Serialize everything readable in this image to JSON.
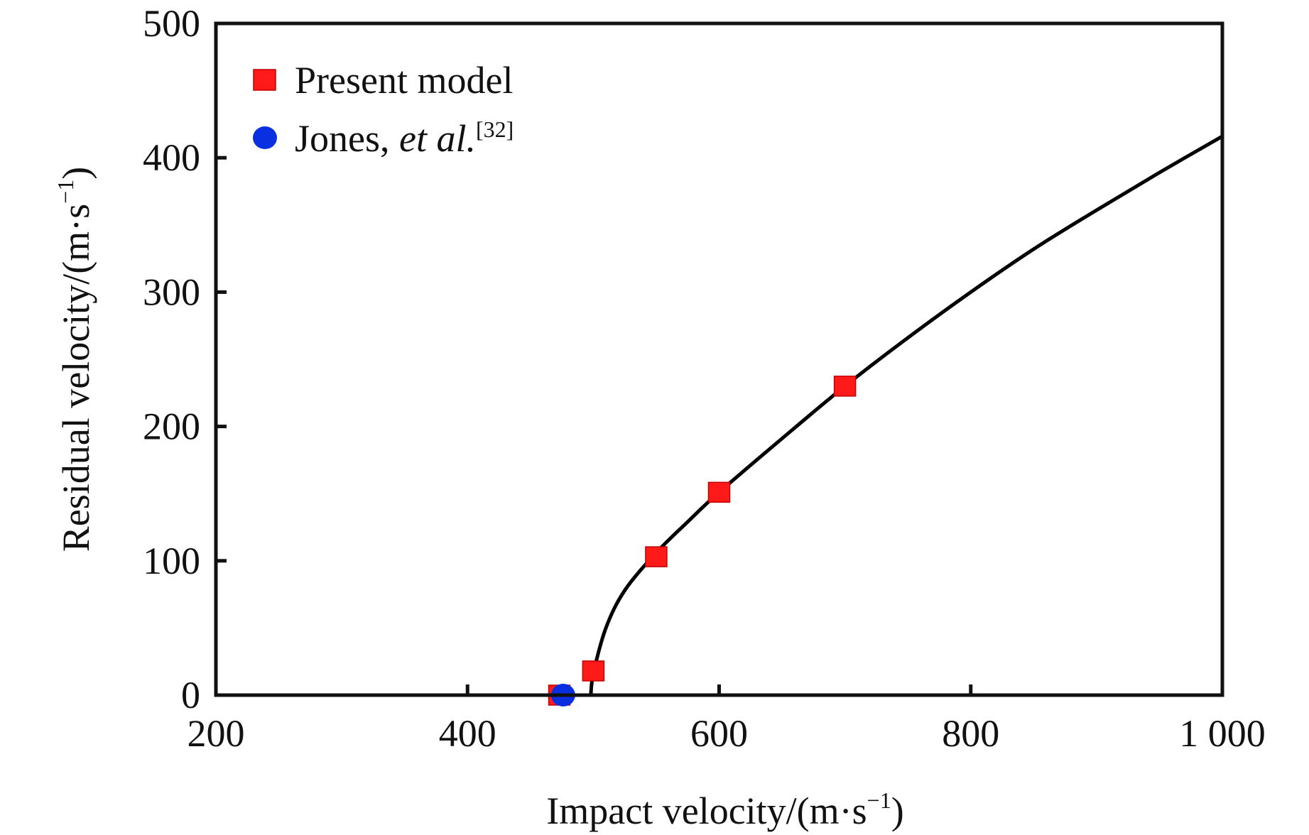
{
  "chart_data": {
    "type": "scatter",
    "title": "",
    "xlabel": "Impact velocity/(m·s",
    "xlabel_sup": "−1",
    "xlabel_end": ")",
    "ylabel": "Residual velocity/(m·s",
    "ylabel_sup": "−1",
    "ylabel_end": ")",
    "xlim": [
      200,
      1000
    ],
    "ylim": [
      0,
      500
    ],
    "x_ticks": [
      200,
      400,
      600,
      800,
      1000
    ],
    "x_tick_labels": [
      "200",
      "400",
      "600",
      "800",
      "1 000"
    ],
    "y_ticks": [
      0,
      100,
      200,
      300,
      400,
      500
    ],
    "y_tick_labels": [
      "0",
      "100",
      "200",
      "300",
      "400",
      "500"
    ],
    "grid": false,
    "legend_position": "top-left",
    "series": [
      {
        "name": "Present model",
        "marker": "square",
        "color": "#ff1a1a",
        "points": [
          [
            473,
            0
          ],
          [
            500,
            18
          ],
          [
            550,
            103
          ],
          [
            600,
            151
          ],
          [
            700,
            230
          ]
        ]
      },
      {
        "name": "Jones, et al.",
        "name_main": "Jones, ",
        "name_italic": "et al.",
        "name_sup": "[32]",
        "marker": "circle",
        "color": "#0a2fe0",
        "points": [
          [
            476,
            0
          ]
        ]
      }
    ],
    "fit_curve": {
      "name": "fit",
      "color": "#000000",
      "points": [
        [
          498,
          0
        ],
        [
          500,
          16
        ],
        [
          510,
          50
        ],
        [
          525,
          78
        ],
        [
          550,
          106
        ],
        [
          575,
          129
        ],
        [
          600,
          151
        ],
        [
          650,
          191
        ],
        [
          700,
          230
        ],
        [
          750,
          266
        ],
        [
          800,
          300
        ],
        [
          850,
          332
        ],
        [
          900,
          361
        ],
        [
          950,
          389
        ],
        [
          1000,
          416
        ]
      ]
    }
  }
}
